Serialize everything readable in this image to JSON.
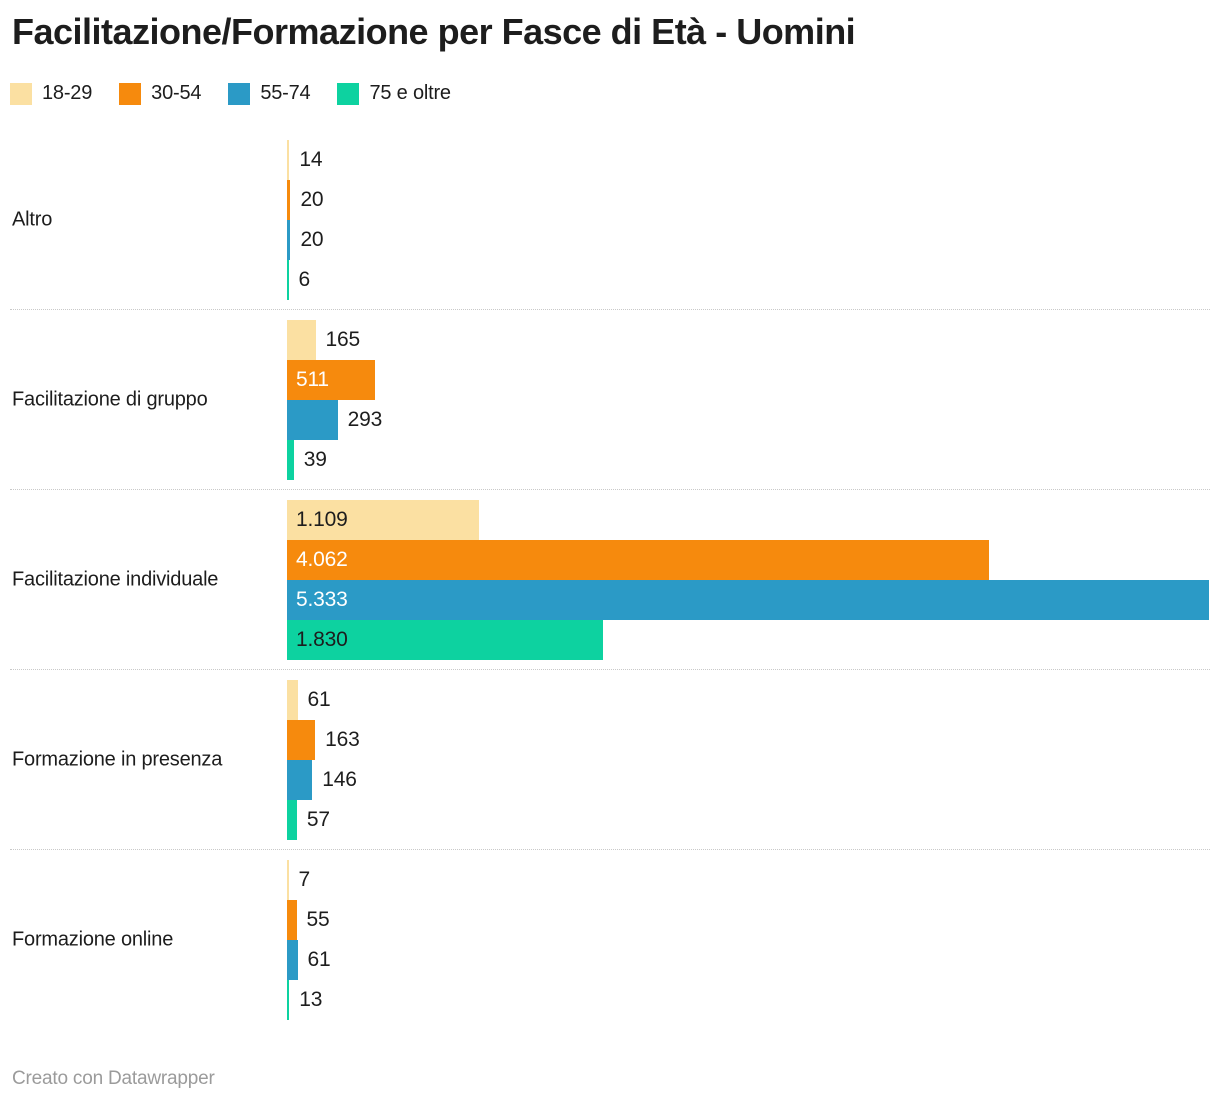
{
  "title": "Facilitazione/Formazione per Fasce di Età - Uomini",
  "footer": {
    "credit": "Creato con Datawrapper"
  },
  "colors": {
    "text": "#1d1d1d",
    "footer_text": "#9b9b9b",
    "separator": "#c9c9c9"
  },
  "chart_data": {
    "type": "bar",
    "orientation": "horizontal",
    "title": "Facilitazione/Formazione per Fasce di Età - Uomini",
    "legend_position": "top",
    "grid": false,
    "xlim": [
      0,
      5333
    ],
    "xmax": 5333,
    "value_format": "it-IT (punto come separatore migliaia)",
    "categories": [
      "Altro",
      "Facilitazione di gruppo",
      "Facilitazione individuale",
      "Formazione in presenza",
      "Formazione online"
    ],
    "series": [
      {
        "name": "18-29",
        "color": "#FBE0A2",
        "inside_text_color": "#1d1d1d",
        "values": [
          14,
          165,
          1109,
          61,
          7
        ],
        "labels": [
          "14",
          "165",
          "1.109",
          "61",
          "7"
        ]
      },
      {
        "name": "30-54",
        "color": "#F68A0D",
        "inside_text_color": "#ffffff",
        "values": [
          20,
          511,
          4062,
          163,
          55
        ],
        "labels": [
          "20",
          "511",
          "4.062",
          "163",
          "55"
        ]
      },
      {
        "name": "55-74",
        "color": "#2B9AC6",
        "inside_text_color": "#ffffff",
        "values": [
          20,
          293,
          5333,
          146,
          61
        ],
        "labels": [
          "20",
          "293",
          "5.333",
          "146",
          "61"
        ]
      },
      {
        "name": "75 e oltre",
        "color": "#0DD2A0",
        "inside_text_color": "#1d1d1d",
        "values": [
          6,
          39,
          1830,
          57,
          13
        ],
        "labels": [
          "6",
          "39",
          "1.830",
          "57",
          "13"
        ]
      }
    ]
  }
}
